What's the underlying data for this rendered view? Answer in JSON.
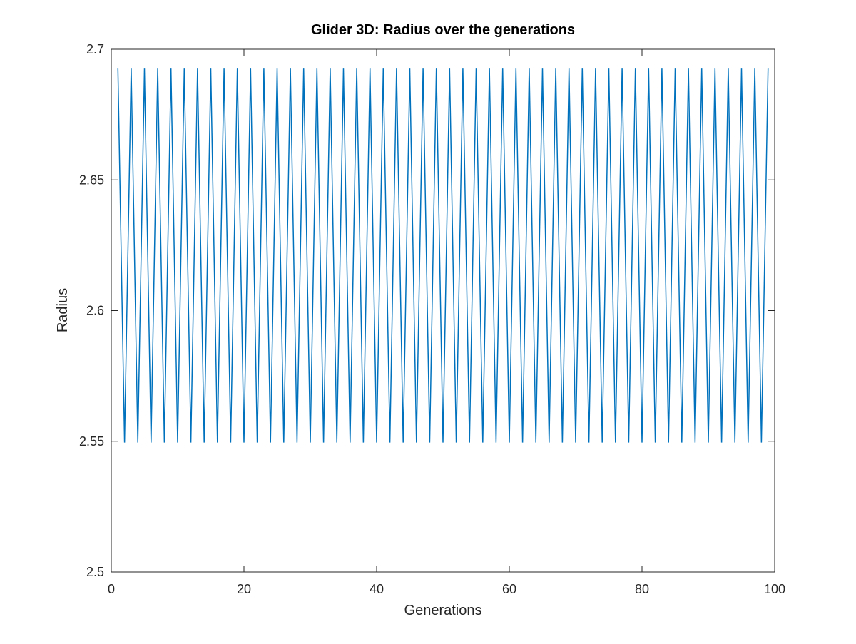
{
  "chart_data": {
    "type": "line",
    "title": "Glider 3D: Radius over the generations",
    "xlabel": "Generations",
    "ylabel": "Radius",
    "xlim": [
      0,
      100
    ],
    "ylim": [
      2.5,
      2.7
    ],
    "xticks": [
      0,
      20,
      40,
      60,
      80,
      100
    ],
    "yticks": [
      2.5,
      2.55,
      2.6,
      2.65,
      2.7
    ],
    "xtick_labels": [
      "0",
      "20",
      "40",
      "60",
      "80",
      "100"
    ],
    "ytick_labels": [
      "2.5",
      "2.55",
      "2.6",
      "2.65",
      "2.7"
    ],
    "grid": false,
    "box": true,
    "series": [
      {
        "color": "#0072bd",
        "x": [
          1,
          2,
          3,
          4,
          5,
          6,
          7,
          8,
          9,
          10,
          11,
          12,
          13,
          14,
          15,
          16,
          17,
          18,
          19,
          20,
          21,
          22,
          23,
          24,
          25,
          26,
          27,
          28,
          29,
          30,
          31,
          32,
          33,
          34,
          35,
          36,
          37,
          38,
          39,
          40,
          41,
          42,
          43,
          44,
          45,
          46,
          47,
          48,
          49,
          50,
          51,
          52,
          53,
          54,
          55,
          56,
          57,
          58,
          59,
          60,
          61,
          62,
          63,
          64,
          65,
          66,
          67,
          68,
          69,
          70,
          71,
          72,
          73,
          74,
          75,
          76,
          77,
          78,
          79,
          80,
          81,
          82,
          83,
          84,
          85,
          86,
          87,
          88,
          89,
          90,
          91,
          92,
          93,
          94,
          95,
          96,
          97,
          98,
          99
        ],
        "y": [
          2.6926,
          2.5495,
          2.6926,
          2.5495,
          2.6926,
          2.5495,
          2.6926,
          2.5495,
          2.6926,
          2.5495,
          2.6926,
          2.5495,
          2.6926,
          2.5495,
          2.6926,
          2.5495,
          2.6926,
          2.5495,
          2.6926,
          2.5495,
          2.6926,
          2.5495,
          2.6926,
          2.5495,
          2.6926,
          2.5495,
          2.6926,
          2.5495,
          2.6926,
          2.5495,
          2.6926,
          2.5495,
          2.6926,
          2.5495,
          2.6926,
          2.5495,
          2.6926,
          2.5495,
          2.6926,
          2.5495,
          2.6926,
          2.5495,
          2.6926,
          2.5495,
          2.6926,
          2.5495,
          2.6926,
          2.5495,
          2.6926,
          2.5495,
          2.6926,
          2.5495,
          2.6926,
          2.5495,
          2.6926,
          2.5495,
          2.6926,
          2.5495,
          2.6926,
          2.5495,
          2.6926,
          2.5495,
          2.6926,
          2.5495,
          2.6926,
          2.5495,
          2.6926,
          2.5495,
          2.6926,
          2.5495,
          2.6926,
          2.5495,
          2.6926,
          2.5495,
          2.6926,
          2.5495,
          2.6926,
          2.5495,
          2.6926,
          2.5495,
          2.6926,
          2.5495,
          2.6926,
          2.5495,
          2.6926,
          2.5495,
          2.6926,
          2.5495,
          2.6926,
          2.5495,
          2.6926,
          2.5495,
          2.6926,
          2.5495,
          2.6926,
          2.5495,
          2.6926,
          2.5495,
          2.6926
        ]
      }
    ]
  }
}
